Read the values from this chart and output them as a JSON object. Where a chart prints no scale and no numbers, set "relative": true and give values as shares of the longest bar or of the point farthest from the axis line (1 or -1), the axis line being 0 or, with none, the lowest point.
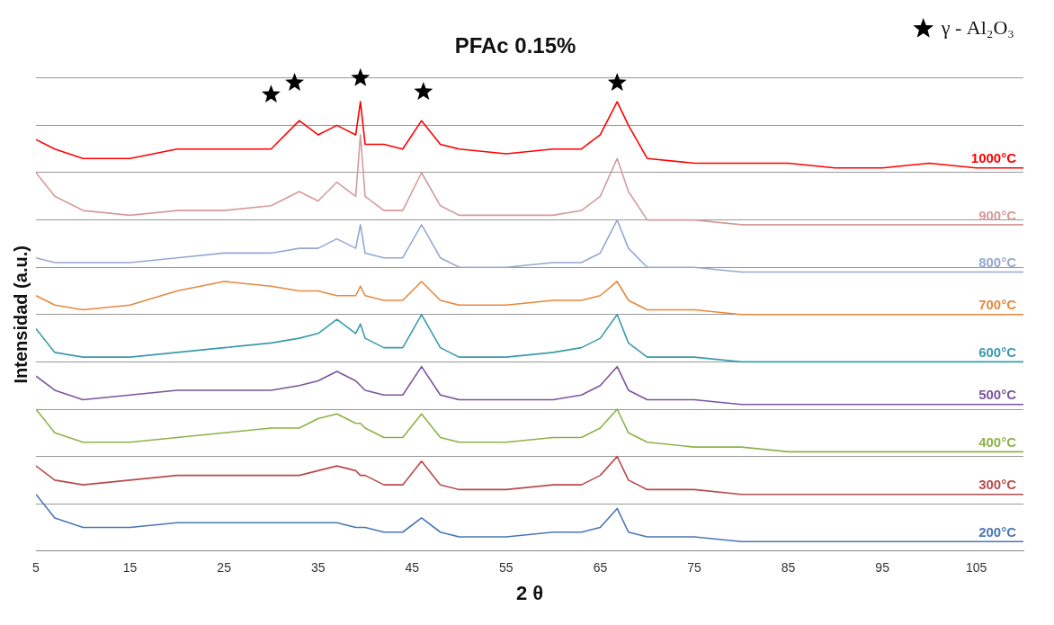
{
  "chart_data": {
    "type": "line",
    "title": "PFAc 0.15%",
    "xlabel": "2 θ",
    "ylabel": "Intensidad (a.u.)",
    "relative": true,
    "grid": "y",
    "legend": "top right",
    "marker": "none",
    "line_style": "solid",
    "xlim": [
      5,
      110
    ],
    "xticks": [
      5,
      15,
      25,
      35,
      45,
      55,
      65,
      75,
      85,
      95,
      105
    ],
    "x": [
      5,
      7,
      10,
      15,
      20,
      25,
      30,
      33,
      35,
      37,
      39,
      39.5,
      40,
      42,
      44,
      46,
      48,
      50,
      55,
      60,
      63,
      65,
      66.8,
      68,
      70,
      75,
      80,
      85,
      90,
      95,
      100,
      105,
      110
    ],
    "series": [
      {
        "name": "1000°C",
        "color": "#ff0000",
        "values": [
          0.87,
          0.85,
          0.83,
          0.83,
          0.85,
          0.85,
          0.85,
          0.91,
          0.88,
          0.9,
          0.88,
          0.95,
          0.86,
          0.86,
          0.85,
          0.91,
          0.86,
          0.85,
          0.84,
          0.85,
          0.85,
          0.88,
          0.95,
          0.9,
          0.83,
          0.82,
          0.82,
          0.82,
          0.81,
          0.81,
          0.82,
          0.81,
          0.81
        ]
      },
      {
        "name": "900°C",
        "color": "#d59b9b",
        "values": [
          0.8,
          0.75,
          0.72,
          0.71,
          0.72,
          0.72,
          0.73,
          0.76,
          0.74,
          0.78,
          0.75,
          0.88,
          0.75,
          0.72,
          0.72,
          0.8,
          0.73,
          0.71,
          0.71,
          0.71,
          0.72,
          0.75,
          0.83,
          0.76,
          0.7,
          0.7,
          0.69,
          0.69,
          0.69,
          0.69,
          0.69,
          0.69,
          0.69
        ]
      },
      {
        "name": "800°C",
        "color": "#95a8d2",
        "values": [
          0.62,
          0.61,
          0.61,
          0.61,
          0.62,
          0.63,
          0.63,
          0.64,
          0.64,
          0.66,
          0.64,
          0.69,
          0.63,
          0.62,
          0.62,
          0.69,
          0.62,
          0.6,
          0.6,
          0.61,
          0.61,
          0.63,
          0.7,
          0.64,
          0.6,
          0.6,
          0.59,
          0.59,
          0.59,
          0.59,
          0.59,
          0.59,
          0.59
        ]
      },
      {
        "name": "700°C",
        "color": "#e6893e",
        "values": [
          0.54,
          0.52,
          0.51,
          0.52,
          0.55,
          0.57,
          0.56,
          0.55,
          0.55,
          0.54,
          0.54,
          0.56,
          0.54,
          0.53,
          0.53,
          0.57,
          0.53,
          0.52,
          0.52,
          0.53,
          0.53,
          0.54,
          0.57,
          0.53,
          0.51,
          0.51,
          0.5,
          0.5,
          0.5,
          0.5,
          0.5,
          0.5,
          0.5
        ]
      },
      {
        "name": "600°C",
        "color": "#3a9bab",
        "values": [
          0.47,
          0.42,
          0.41,
          0.41,
          0.42,
          0.43,
          0.44,
          0.45,
          0.46,
          0.49,
          0.46,
          0.48,
          0.45,
          0.43,
          0.43,
          0.5,
          0.43,
          0.41,
          0.41,
          0.42,
          0.43,
          0.45,
          0.5,
          0.44,
          0.41,
          0.41,
          0.4,
          0.4,
          0.4,
          0.4,
          0.4,
          0.4,
          0.4
        ]
      },
      {
        "name": "500°C",
        "color": "#7a549d",
        "values": [
          0.37,
          0.34,
          0.32,
          0.33,
          0.34,
          0.34,
          0.34,
          0.35,
          0.36,
          0.38,
          0.36,
          0.35,
          0.34,
          0.33,
          0.33,
          0.39,
          0.33,
          0.32,
          0.32,
          0.32,
          0.33,
          0.35,
          0.39,
          0.34,
          0.32,
          0.32,
          0.31,
          0.31,
          0.31,
          0.31,
          0.31,
          0.31,
          0.31
        ]
      },
      {
        "name": "400°C",
        "color": "#8cb348",
        "values": [
          0.3,
          0.25,
          0.23,
          0.23,
          0.24,
          0.25,
          0.26,
          0.26,
          0.28,
          0.29,
          0.27,
          0.27,
          0.26,
          0.24,
          0.24,
          0.29,
          0.24,
          0.23,
          0.23,
          0.24,
          0.24,
          0.26,
          0.3,
          0.25,
          0.23,
          0.22,
          0.22,
          0.21,
          0.21,
          0.21,
          0.21,
          0.21,
          0.21
        ]
      },
      {
        "name": "300°C",
        "color": "#b94a4a",
        "values": [
          0.18,
          0.15,
          0.14,
          0.15,
          0.16,
          0.16,
          0.16,
          0.16,
          0.17,
          0.18,
          0.17,
          0.16,
          0.16,
          0.14,
          0.14,
          0.19,
          0.14,
          0.13,
          0.13,
          0.14,
          0.14,
          0.16,
          0.2,
          0.15,
          0.13,
          0.13,
          0.12,
          0.12,
          0.12,
          0.12,
          0.12,
          0.12,
          0.12
        ]
      },
      {
        "name": "200°C",
        "color": "#4a76b5",
        "values": [
          0.12,
          0.07,
          0.05,
          0.05,
          0.06,
          0.06,
          0.06,
          0.06,
          0.06,
          0.06,
          0.05,
          0.05,
          0.05,
          0.04,
          0.04,
          0.07,
          0.04,
          0.03,
          0.03,
          0.04,
          0.04,
          0.05,
          0.09,
          0.04,
          0.03,
          0.03,
          0.02,
          0.02,
          0.02,
          0.02,
          0.02,
          0.02,
          0.02
        ]
      },
      {
        "name": "γ - Al₂O₃",
        "type": "scatter",
        "marker": "star",
        "color": "#000000",
        "x": [
          30,
          32.5,
          39.5,
          46.2,
          66.8
        ],
        "values": [
          0.965,
          0.99,
          1,
          0.971,
          0.99
        ]
      }
    ]
  }
}
